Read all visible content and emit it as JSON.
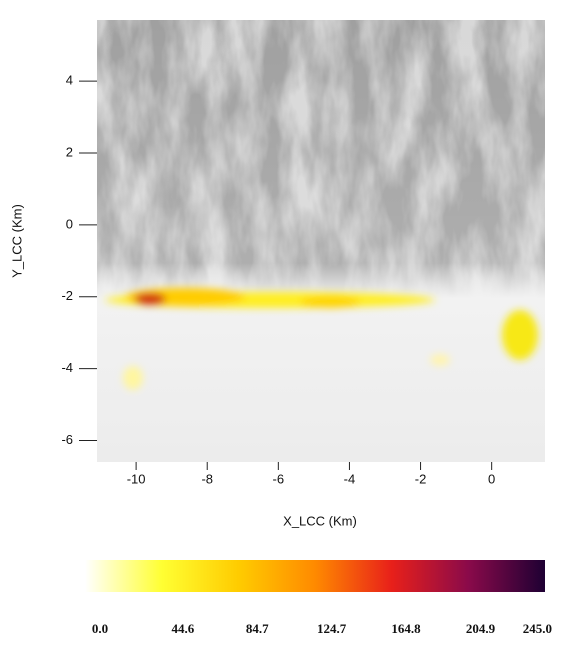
{
  "chart_data": {
    "type": "map",
    "xlabel": "X_LCC (Km)",
    "ylabel": "Y_LCC (Km)",
    "xlim": [
      -11.1,
      1.5
    ],
    "ylim": [
      -6.6,
      5.7
    ],
    "xticks": [
      -10,
      -8,
      -6,
      -4,
      -2,
      0
    ],
    "yticks": [
      -6,
      -4,
      -2,
      0,
      2,
      4
    ],
    "colorbar": {
      "clim": [
        0,
        245
      ],
      "colormap": [
        "#ffffff",
        "#ffff33",
        "#ffcc00",
        "#ff8a00",
        "#e8201a",
        "#8a0a4a",
        "#1e0033"
      ],
      "ticks": [
        {
          "value": 0,
          "label": "0.0"
        },
        44.6,
        84.7,
        124.7,
        164.8,
        204.9,
        {
          "value": 245,
          "label": "245.0"
        }
      ]
    }
  }
}
